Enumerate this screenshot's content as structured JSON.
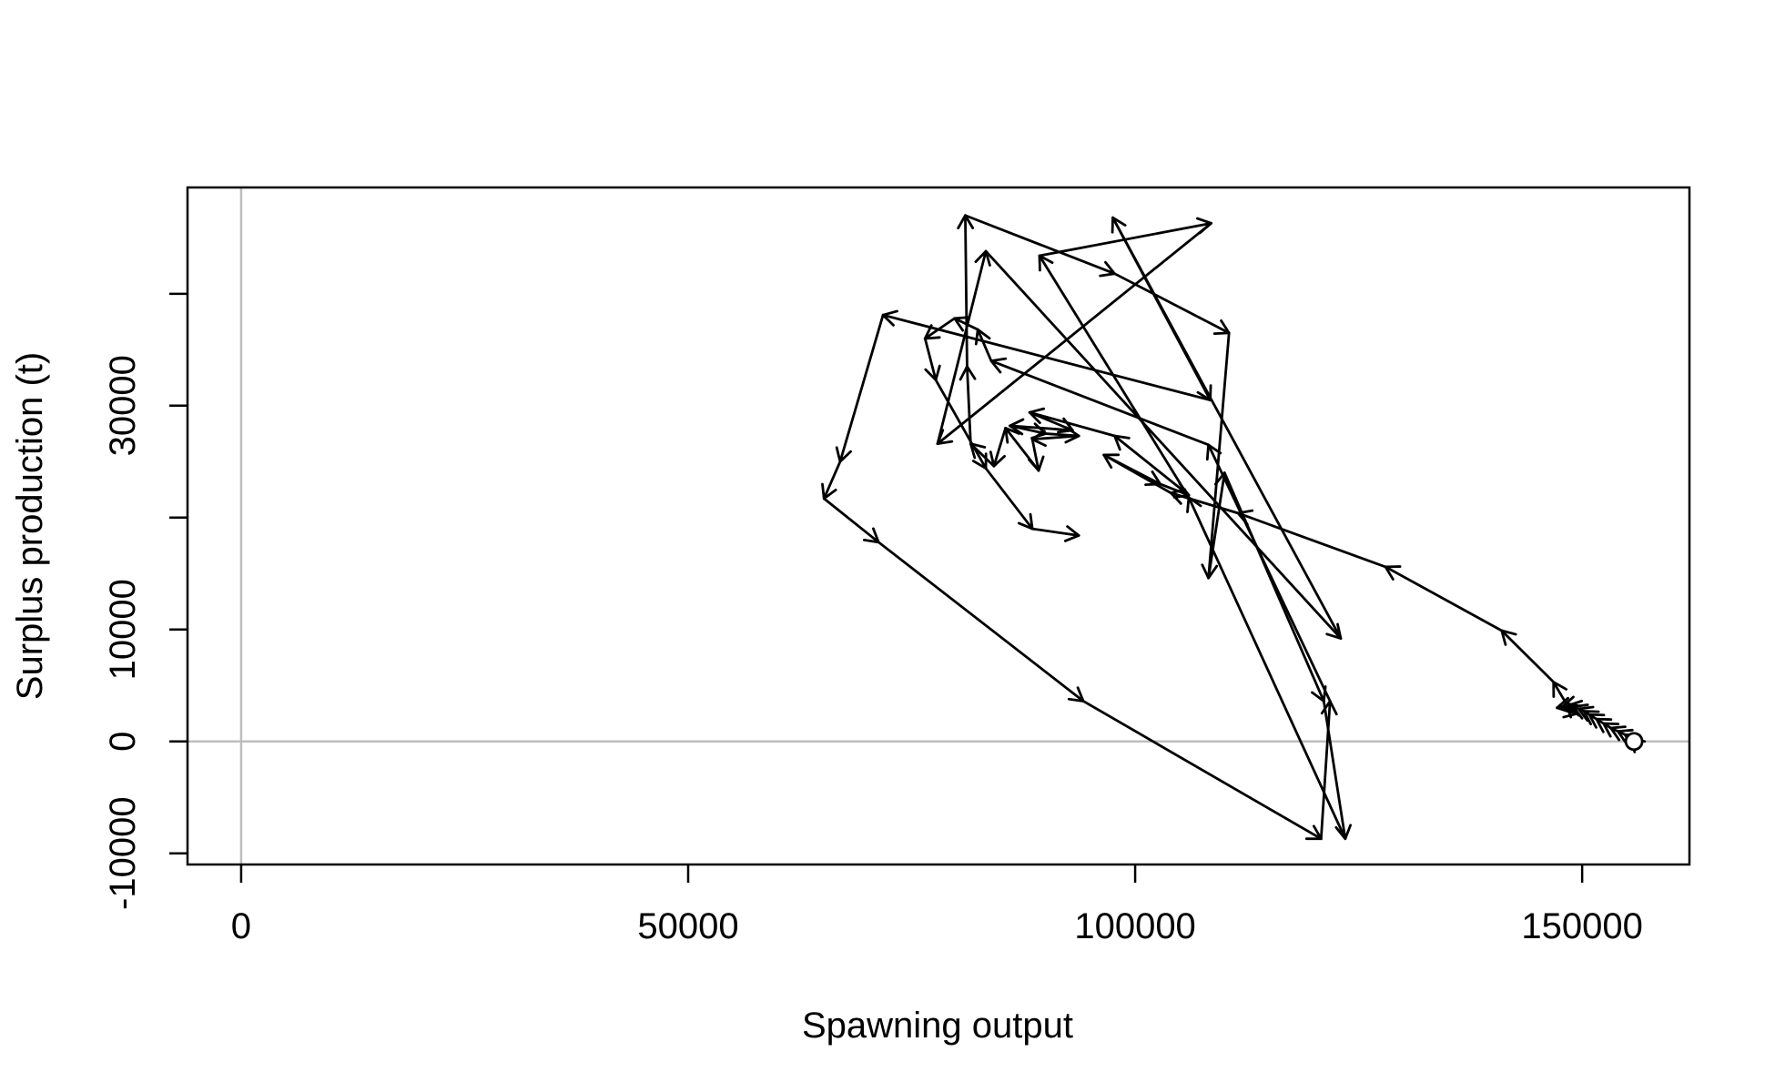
{
  "chart_data": {
    "type": "line",
    "title": "",
    "xlabel": "Spawning output",
    "ylabel": "Surplus production (t)",
    "xlim": [
      -6000,
      162000
    ],
    "ylim": [
      -11000,
      49500
    ],
    "x_ticks": [
      0,
      50000,
      100000,
      150000
    ],
    "x_tick_labels": [
      "0",
      "50000",
      "100000",
      "150000"
    ],
    "y_ticks": [
      -10000,
      0,
      10000,
      20000,
      30000,
      40000
    ],
    "y_tick_labels": [
      "-10000",
      "0",
      "10000",
      "",
      "30000",
      ""
    ],
    "reference_lines": {
      "x": 0,
      "y": 0,
      "color": "#bebebe"
    },
    "grid": false,
    "legend": "none",
    "line_color": "#000000",
    "series": [
      {
        "start_marker": "open-circle",
        "x": [
          155800,
          155400,
          154800,
          154000,
          153200,
          152400,
          151600,
          150800,
          150200,
          149600,
          149000,
          148400,
          147800,
          147200,
          149500,
          148200,
          146800,
          141000,
          128000,
          111500,
          104000,
          96500,
          102800,
          106000,
          97700,
          88200,
          93000,
          86000,
          90000,
          93700,
          88500,
          89200,
          85500,
          84200,
          81600,
          81200,
          81000,
          97700,
          110500,
          108200,
          110000,
          121100,
          123500,
          106000,
          89300,
          108500,
          77900,
          83300,
          123000,
          97500,
          108400,
          71800,
          67000,
          65200,
          71300,
          94200,
          120800,
          121800,
          108200,
          83900,
          82400,
          79800,
          76500,
          77700,
          83300,
          88500,
          93700
        ],
        "y": [
          0,
          300,
          600,
          900,
          1200,
          1600,
          2000,
          2400,
          2700,
          2900,
          3100,
          3200,
          3100,
          3000,
          2500,
          3400,
          5300,
          9900,
          15600,
          20400,
          22200,
          25600,
          23000,
          22000,
          27300,
          29400,
          27800,
          28200,
          27500,
          27300,
          27000,
          24200,
          28000,
          24600,
          26600,
          33500,
          47000,
          41800,
          36500,
          14600,
          24000,
          3600,
          -8700,
          21800,
          43400,
          46300,
          26600,
          43800,
          9200,
          46800,
          30500,
          38100,
          25000,
          21700,
          17800,
          3600,
          -8700,
          3600,
          26500,
          34000,
          36800,
          37800,
          36000,
          32300,
          24400,
          19000,
          18400
        ]
      }
    ]
  }
}
